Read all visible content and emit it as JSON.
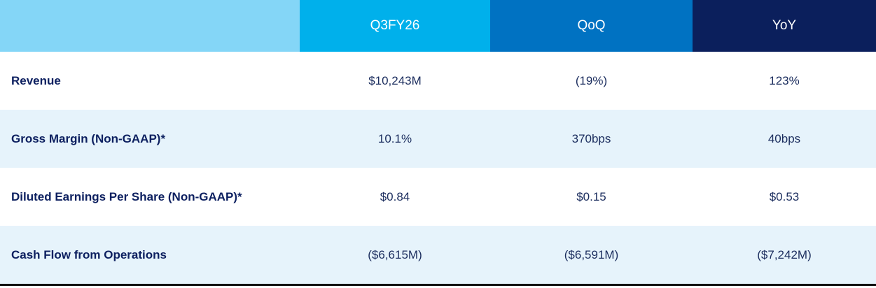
{
  "table": {
    "headers": [
      "",
      "Q3FY26",
      "QoQ",
      "YoY"
    ],
    "rows": [
      {
        "label": "Revenue",
        "q3fy26": "$10,243M",
        "qoq": "(19%)",
        "yoy": "123%"
      },
      {
        "label": "Gross Margin (Non-GAAP)*",
        "q3fy26": "10.1%",
        "qoq": "370bps",
        "yoy": "40bps"
      },
      {
        "label": "Diluted Earnings Per Share (Non-GAAP)*",
        "q3fy26": "$0.84",
        "qoq": "$0.15",
        "yoy": "$0.53"
      },
      {
        "label": "Cash Flow from Operations",
        "q3fy26": "($6,615M)",
        "qoq": "($6,591M)",
        "yoy": "($7,242M)"
      }
    ]
  },
  "colors": {
    "header_corner": "#84d6f7",
    "header_q3fy26": "#00b0eb",
    "header_qoq": "#0072c2",
    "header_yoy": "#0b1f5c",
    "row_tint": "#e6f3fb",
    "label_text": "#0d2060"
  }
}
